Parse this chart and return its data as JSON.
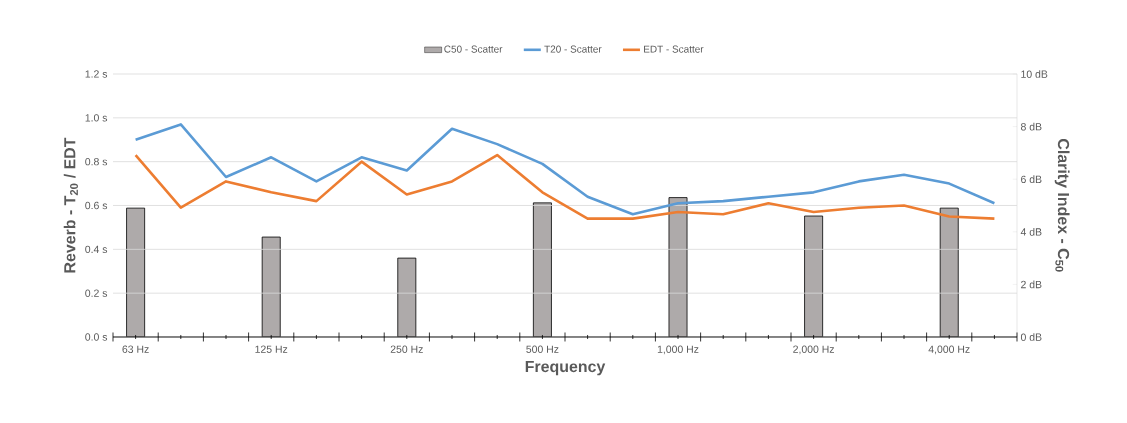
{
  "chart_data": {
    "type": "line",
    "xlabel": "Frequency",
    "ylabel": "Reverb - T$_{20}$ / EDT",
    "y2label": "Clarity Index - C$_{50}$",
    "categories": [
      "63 Hz",
      null,
      null,
      "125 Hz",
      null,
      null,
      "250 Hz",
      null,
      null,
      "500 Hz",
      null,
      null,
      "1,000 Hz",
      null,
      null,
      "2,000 Hz",
      null,
      null,
      "4,000 Hz",
      null
    ],
    "series": [
      {
        "name": "C50 - Scatter",
        "type": "bar",
        "axis": "y2",
        "color": "#aeaaaa",
        "values": [
          4.9,
          null,
          null,
          3.8,
          null,
          null,
          3.0,
          null,
          null,
          5.1,
          null,
          null,
          5.3,
          null,
          null,
          4.6,
          null,
          null,
          4.9,
          null
        ]
      },
      {
        "name": "T20 - Scatter",
        "color": "#5b9bd5",
        "values": [
          0.9,
          0.97,
          0.73,
          0.82,
          0.71,
          0.82,
          0.76,
          0.95,
          0.88,
          0.79,
          0.64,
          0.56,
          0.61,
          0.62,
          0.64,
          0.66,
          0.71,
          0.74,
          0.7,
          0.61
        ]
      },
      {
        "name": "EDT - Scatter",
        "color": "#ed7d31",
        "values": [
          0.83,
          0.59,
          0.71,
          0.66,
          0.62,
          0.8,
          0.65,
          0.71,
          0.83,
          0.66,
          0.54,
          0.54,
          0.57,
          0.56,
          0.61,
          0.57,
          0.59,
          0.6,
          0.55,
          0.54
        ]
      }
    ],
    "ylim": [
      0,
      1.2
    ],
    "yticks": [
      {
        "value": 0,
        "label": "0.0 s"
      },
      {
        "value": 0.2,
        "label": "0.2 s"
      },
      {
        "value": 0.4,
        "label": "0.4 s"
      },
      {
        "value": 0.6,
        "label": "0.6 s"
      },
      {
        "value": 0.8,
        "label": "0.8 s"
      },
      {
        "value": 1.0,
        "label": "1.0 s"
      },
      {
        "value": 1.2,
        "label": "1.2 s"
      }
    ],
    "y2lim": [
      0,
      10
    ],
    "y2ticks": [
      {
        "value": 0,
        "label": "0 dB"
      },
      {
        "value": 2,
        "label": "2 dB"
      },
      {
        "value": 4,
        "label": "4 dB"
      },
      {
        "value": 6,
        "label": "6 dB"
      },
      {
        "value": 8,
        "label": "8 dB"
      },
      {
        "value": 10,
        "label": "10 dB"
      }
    ],
    "grid": "y",
    "legend": "top"
  }
}
